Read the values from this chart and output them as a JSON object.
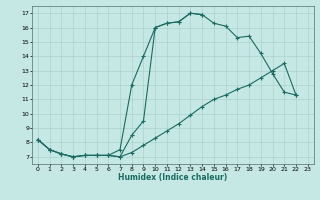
{
  "xlabel": "Humidex (Indice chaleur)",
  "bg_color": "#c5e8e5",
  "line_color": "#1a6b60",
  "grid_color": "#a8ceca",
  "xlim": [
    -0.5,
    23.5
  ],
  "ylim": [
    6.5,
    17.5
  ],
  "xticks": [
    0,
    1,
    2,
    3,
    4,
    5,
    6,
    7,
    8,
    9,
    10,
    11,
    12,
    13,
    14,
    15,
    16,
    17,
    18,
    19,
    20,
    21,
    22,
    23
  ],
  "yticks": [
    7,
    8,
    9,
    10,
    11,
    12,
    13,
    14,
    15,
    16,
    17
  ],
  "line1_x": [
    0,
    1,
    2,
    3,
    4,
    5,
    6,
    7,
    8,
    9,
    10,
    11,
    12,
    13,
    14,
    15,
    16,
    17,
    18,
    19,
    20,
    21,
    22
  ],
  "line1_y": [
    8.2,
    7.5,
    7.2,
    7.0,
    7.1,
    7.1,
    7.1,
    7.0,
    8.5,
    9.5,
    16.0,
    16.3,
    16.4,
    17.0,
    16.9,
    16.3,
    16.1,
    15.3,
    15.4,
    14.2,
    12.8,
    11.5,
    11.3
  ],
  "line2_x": [
    0,
    1,
    2,
    3,
    4,
    5,
    6,
    7,
    8,
    9,
    10,
    11,
    12,
    13,
    14
  ],
  "line2_y": [
    8.2,
    7.5,
    7.2,
    7.0,
    7.1,
    7.1,
    7.1,
    7.5,
    12.0,
    14.0,
    16.0,
    16.3,
    16.4,
    17.0,
    16.9
  ],
  "line3_x": [
    0,
    1,
    2,
    3,
    4,
    5,
    6,
    7,
    8,
    9,
    10,
    11,
    12,
    13,
    14,
    15,
    16,
    17,
    18,
    19,
    20,
    21,
    22
  ],
  "line3_y": [
    8.2,
    7.5,
    7.2,
    7.0,
    7.1,
    7.1,
    7.1,
    7.0,
    7.3,
    7.8,
    8.3,
    8.8,
    9.3,
    9.9,
    10.5,
    11.0,
    11.3,
    11.7,
    12.0,
    12.5,
    13.0,
    13.5,
    11.3
  ]
}
